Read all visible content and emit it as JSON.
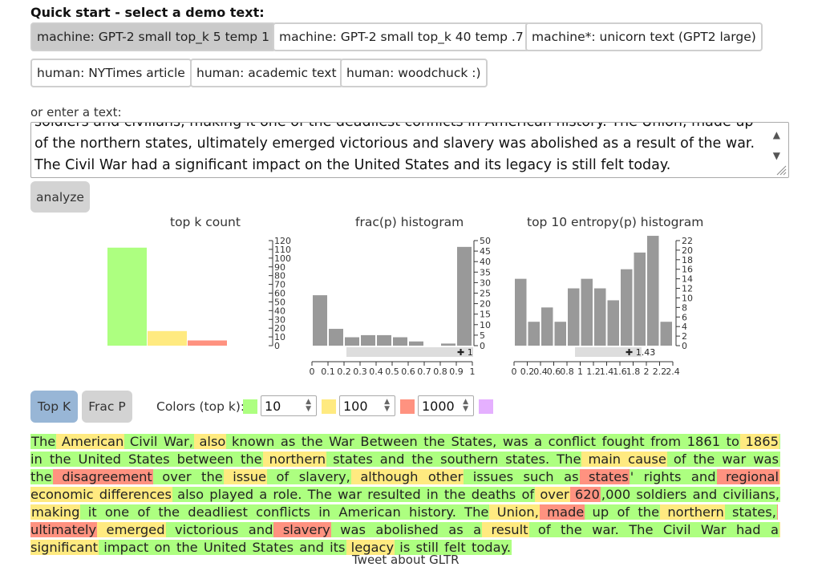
{
  "quick_start": {
    "title": "Quick start - select a demo text:",
    "buttons": [
      "machine: GPT-2 small top_k 5 temp 1",
      "machine: GPT-2 small top_k 40 temp .7",
      "machine*: unicorn text (GPT2 large)",
      "human: NYTimes article",
      "human: academic text",
      "human: woodchuck :)"
    ],
    "selected_index": 0
  },
  "input": {
    "label": "or enter a text:",
    "lines": [
      "soldiers and civilians, making it one of the deadliest conflicts in American history. The Union, made up",
      "of the northern states, ultimately emerged victorious and slavery was abolished as a result of the war.",
      "The Civil War had a significant impact on the United States and its legacy is still felt today."
    ]
  },
  "analyze_label": "analyze",
  "histograms": {
    "topk": {
      "title": "top k count",
      "values": [
        0.94,
        0.14,
        0.05
      ],
      "colors": [
        "#adff80",
        "#ffea80",
        "#ff9280"
      ]
    },
    "frac": {
      "title": "frac(p) histogram",
      "ticks": [
        "0",
        "0.1",
        "0.2",
        "0.3",
        "0.4",
        "0.5",
        "0.6",
        "0.7",
        "0.8",
        "0.9",
        "1"
      ],
      "values": [
        24,
        8,
        4,
        5,
        5,
        4,
        2,
        0,
        1,
        47
      ],
      "ylim": [
        0,
        50
      ],
      "yticks": [
        0,
        5,
        10,
        15,
        20,
        25,
        30,
        35,
        40,
        45,
        50
      ],
      "slider_label": "1"
    },
    "entropy": {
      "title": "top 10 entropy(p) histogram",
      "ticks": [
        "0",
        "0.2",
        "0.4",
        "0.6",
        "0.8",
        "1",
        "1.2",
        "1.4",
        "1.6",
        "1.8",
        "2",
        "2.2",
        "2.4"
      ],
      "values": [
        14,
        5,
        8,
        5,
        12,
        14,
        12,
        9.5,
        16,
        19.5,
        23,
        5
      ],
      "ylim": [
        0,
        22
      ],
      "yticks": [
        0,
        2,
        4,
        6,
        8,
        10,
        12,
        14,
        16,
        18,
        20,
        22
      ],
      "slider_label": "1.43"
    },
    "count_axis": {
      "ticks": [
        "0",
        "10",
        "20",
        "30",
        "40",
        "50",
        "60",
        "70",
        "80",
        "90",
        "100",
        "110",
        "120"
      ]
    }
  },
  "controls": {
    "topk_label": "Top K",
    "fracp_label": "Frac P",
    "colors_label": "Colors (top k):",
    "thresholds": [
      "10",
      "100",
      "1000"
    ],
    "colors": {
      "green": "#adff80",
      "yellow": "#ffea80",
      "red": "#ff9280",
      "purple": "#e5b0ff"
    }
  },
  "output_tokens": [
    [
      "The",
      "g"
    ],
    [
      " American",
      "y"
    ],
    [
      " Civil",
      "g"
    ],
    [
      " War,",
      "g"
    ],
    [
      " also",
      "y"
    ],
    [
      " known",
      "g"
    ],
    [
      " as",
      "g"
    ],
    [
      " the",
      "g"
    ],
    [
      " War",
      "g"
    ],
    [
      " Between",
      "g"
    ],
    [
      " the",
      "g"
    ],
    [
      " States,",
      "g"
    ],
    [
      " was",
      "g"
    ],
    [
      " a",
      "g"
    ],
    [
      " conflict",
      "g"
    ],
    [
      " fought",
      "g"
    ],
    [
      " from",
      "g"
    ],
    [
      " 1861",
      "g"
    ],
    [
      " to",
      "g"
    ],
    [
      " 1865",
      "y"
    ],
    [
      " in",
      "g"
    ],
    [
      " the",
      "g"
    ],
    [
      " United",
      "g"
    ],
    [
      " States",
      "g"
    ],
    [
      " between",
      "g"
    ],
    [
      " the",
      "g"
    ],
    [
      " northern",
      "y"
    ],
    [
      " states",
      "g"
    ],
    [
      " and",
      "g"
    ],
    [
      " the",
      "g"
    ],
    [
      " southern",
      "g"
    ],
    [
      " states.",
      "g"
    ],
    [
      " The",
      "g"
    ],
    [
      " main",
      "y"
    ],
    [
      " cause",
      "y"
    ],
    [
      " of",
      "g"
    ],
    [
      " the",
      "g"
    ],
    [
      " war",
      "g"
    ],
    [
      " was",
      "g"
    ],
    [
      " the",
      "g"
    ],
    [
      " disagreement",
      "r"
    ],
    [
      " over",
      "g"
    ],
    [
      " the",
      "g"
    ],
    [
      " issue",
      "y"
    ],
    [
      " of",
      "g"
    ],
    [
      " slavery,",
      "g"
    ],
    [
      " although",
      "y"
    ],
    [
      " other",
      "y"
    ],
    [
      " issues",
      "g"
    ],
    [
      " such",
      "g"
    ],
    [
      " as",
      "g"
    ],
    [
      " states",
      "r"
    ],
    [
      "'",
      "g"
    ],
    [
      " rights",
      "g"
    ],
    [
      " and",
      "g"
    ],
    [
      " regional",
      "r"
    ],
    [
      " economic",
      "y"
    ],
    [
      " differences",
      "y"
    ],
    [
      " also",
      "g"
    ],
    [
      " played",
      "g"
    ],
    [
      " a",
      "g"
    ],
    [
      " role.",
      "g"
    ],
    [
      " The",
      "g"
    ],
    [
      " war",
      "g"
    ],
    [
      " resulted",
      "g"
    ],
    [
      " in",
      "g"
    ],
    [
      " the",
      "g"
    ],
    [
      " deaths",
      "g"
    ],
    [
      " of",
      "g"
    ],
    [
      " over",
      "y"
    ],
    [
      " 620",
      "r"
    ],
    [
      ",000",
      "g"
    ],
    [
      " soldiers",
      "g"
    ],
    [
      " and",
      "g"
    ],
    [
      " civilians,",
      "g"
    ],
    [
      " making",
      "y"
    ],
    [
      " it",
      "g"
    ],
    [
      " one",
      "g"
    ],
    [
      " of",
      "g"
    ],
    [
      " the",
      "g"
    ],
    [
      " deadliest",
      "g"
    ],
    [
      " conflicts",
      "g"
    ],
    [
      " in",
      "g"
    ],
    [
      " American",
      "g"
    ],
    [
      " history.",
      "g"
    ],
    [
      " The",
      "g"
    ],
    [
      " Union,",
      "y"
    ],
    [
      " made",
      "r"
    ],
    [
      " up",
      "g"
    ],
    [
      " of",
      "g"
    ],
    [
      " the",
      "g"
    ],
    [
      " northern",
      "y"
    ],
    [
      " states,",
      "g"
    ],
    [
      " ultimately",
      "r"
    ],
    [
      " emerged",
      "y"
    ],
    [
      " victorious",
      "g"
    ],
    [
      " and",
      "g"
    ],
    [
      " slavery",
      "r"
    ],
    [
      " was",
      "g"
    ],
    [
      " abolished",
      "g"
    ],
    [
      " as",
      "g"
    ],
    [
      " a",
      "g"
    ],
    [
      " result",
      "y"
    ],
    [
      " of",
      "g"
    ],
    [
      " the",
      "g"
    ],
    [
      " war.",
      "g"
    ],
    [
      " The",
      "g"
    ],
    [
      " Civil",
      "g"
    ],
    [
      " War",
      "g"
    ],
    [
      " had",
      "g"
    ],
    [
      " a",
      "g"
    ],
    [
      " significant",
      "y"
    ],
    [
      " impact",
      "g"
    ],
    [
      " on",
      "g"
    ],
    [
      " the",
      "g"
    ],
    [
      " United",
      "g"
    ],
    [
      " States",
      "g"
    ],
    [
      " and",
      "g"
    ],
    [
      " its",
      "g"
    ],
    [
      " legacy",
      "y"
    ],
    [
      " is",
      "g"
    ],
    [
      " still",
      "g"
    ],
    [
      " felt",
      "g"
    ],
    [
      " today.",
      "g"
    ]
  ],
  "footer": {
    "tweet": "Tweet about GLTR"
  }
}
